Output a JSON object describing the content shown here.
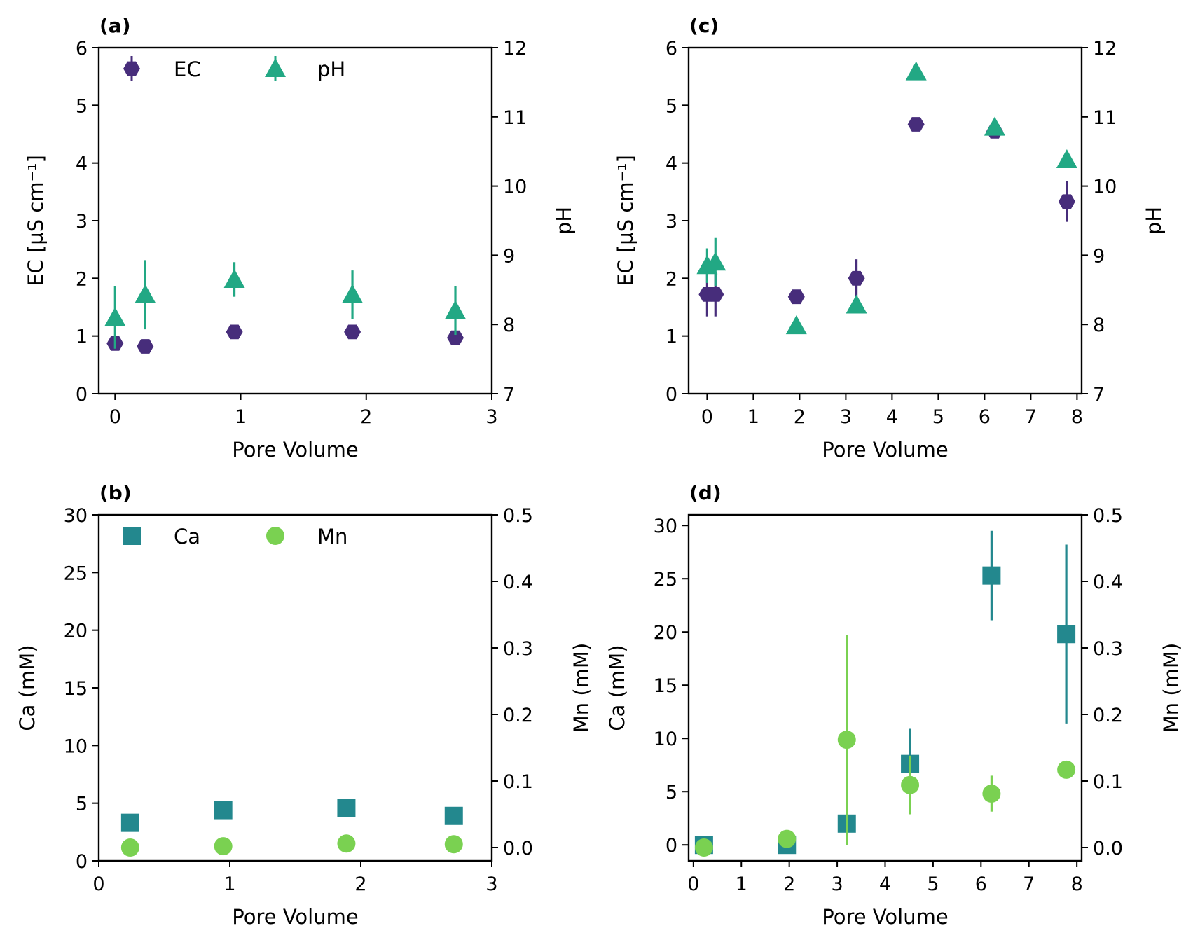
{
  "chart_data": [
    {
      "panel": "(a)",
      "type": "scatter",
      "xlabel": "Pore Volume",
      "ylabel": "EC [µS cm⁻¹]",
      "ylabel_right": "pH",
      "xlim": [
        -0.13,
        3.0
      ],
      "ylim": [
        0,
        6
      ],
      "ylim_right": [
        7,
        12
      ],
      "xticks": [
        0,
        1,
        2,
        3
      ],
      "yticks": [
        0,
        1,
        2,
        3,
        4,
        5,
        6
      ],
      "yticks_right": [
        7,
        8,
        9,
        10,
        11,
        12
      ],
      "legend": {
        "position": "top",
        "entries": [
          "EC",
          "pH"
        ]
      },
      "series": [
        {
          "name": "EC",
          "axis": "left",
          "marker": "hexagon",
          "color": "#472d7b",
          "x": [
            0.0,
            0.24,
            0.95,
            1.89,
            2.71
          ],
          "y": [
            0.87,
            0.82,
            1.07,
            1.07,
            0.97
          ],
          "err": [
            0.05,
            0.05,
            0.04,
            0.04,
            0.04
          ]
        },
        {
          "name": "pH",
          "axis": "right",
          "marker": "triangle",
          "color": "#22a884",
          "x": [
            0.0,
            0.24,
            0.95,
            1.89,
            2.71
          ],
          "y": [
            8.1,
            8.43,
            8.65,
            8.43,
            8.2
          ],
          "err": [
            0.45,
            0.5,
            0.25,
            0.35,
            0.35
          ]
        }
      ]
    },
    {
      "panel": "(b)",
      "type": "scatter",
      "xlabel": "Pore Volume",
      "ylabel": "Ca (mM)",
      "ylabel_right": "Mn (mM)",
      "xlim": [
        0,
        3
      ],
      "ylim": [
        0,
        30
      ],
      "ylim_right": [
        -0.02,
        0.5
      ],
      "xticks": [
        0,
        1,
        2,
        3
      ],
      "yticks": [
        0,
        5,
        10,
        15,
        20,
        25,
        30
      ],
      "yticks_right": [
        0.0,
        0.1,
        0.2,
        0.3,
        0.4,
        0.5
      ],
      "yticks_right_labels": [
        "0.0",
        "0.1",
        "0.2",
        "0.3",
        "0.4",
        "0.5"
      ],
      "legend": {
        "position": "top",
        "entries": [
          "Ca",
          "Mn"
        ]
      },
      "series": [
        {
          "name": "Ca",
          "axis": "left",
          "marker": "square",
          "color": "#23888e",
          "x": [
            0.24,
            0.95,
            1.89,
            2.71
          ],
          "y": [
            3.3,
            4.4,
            4.6,
            3.9
          ],
          "err": [
            0.1,
            0.1,
            0.1,
            0.1
          ]
        },
        {
          "name": "Mn",
          "axis": "right",
          "marker": "circle",
          "color": "#7ad151",
          "x": [
            0.24,
            0.95,
            1.89,
            2.71
          ],
          "y": [
            0.0,
            0.002,
            0.006,
            0.005
          ],
          "err": [
            0.0,
            0.0,
            0.0,
            0.0
          ]
        }
      ]
    },
    {
      "panel": "(c)",
      "type": "scatter",
      "xlabel": "Pore Volume",
      "ylabel": "EC [µS cm⁻¹]",
      "ylabel_right": "pH",
      "xlim": [
        -0.4,
        8.1
      ],
      "ylim": [
        0,
        6
      ],
      "ylim_right": [
        7,
        12
      ],
      "xticks": [
        0,
        1,
        2,
        3,
        4,
        5,
        6,
        7,
        8
      ],
      "yticks": [
        0,
        1,
        2,
        3,
        4,
        5,
        6
      ],
      "yticks_right": [
        7,
        8,
        9,
        10,
        11,
        12
      ],
      "series": [
        {
          "name": "EC",
          "axis": "left",
          "marker": "hexagon",
          "color": "#472d7b",
          "x": [
            0.0,
            0.18,
            1.93,
            3.23,
            4.52,
            6.22,
            7.78
          ],
          "y": [
            1.72,
            1.72,
            1.68,
            2.0,
            4.67,
            4.55,
            3.33
          ],
          "err": [
            0.38,
            0.38,
            0.05,
            0.33,
            0.05,
            0.05,
            0.35
          ]
        },
        {
          "name": "pH",
          "axis": "right",
          "marker": "triangle",
          "color": "#22a884",
          "x": [
            0.0,
            0.18,
            1.93,
            3.23,
            4.52,
            6.22,
            7.78
          ],
          "y": [
            8.85,
            8.9,
            7.98,
            8.28,
            11.65,
            10.85,
            10.38
          ],
          "err": [
            0.25,
            0.35,
            0.0,
            0.0,
            0.0,
            0.0,
            0.0
          ]
        }
      ]
    },
    {
      "panel": "(d)",
      "type": "scatter",
      "xlabel": "Pore Volume",
      "ylabel": "Ca (mM)",
      "ylabel_right": "Mn (mM)",
      "xlim": [
        -0.1,
        8.1
      ],
      "ylim": [
        -1.5,
        31
      ],
      "ylim_right": [
        -0.02,
        0.5
      ],
      "xticks": [
        0,
        1,
        2,
        3,
        4,
        5,
        6,
        7,
        8
      ],
      "yticks": [
        0,
        5,
        10,
        15,
        20,
        25,
        30
      ],
      "yticks_right": [
        0.0,
        0.1,
        0.2,
        0.3,
        0.4,
        0.5
      ],
      "yticks_right_labels": [
        "0.0",
        "0.1",
        "0.2",
        "0.3",
        "0.4",
        "0.5"
      ],
      "series": [
        {
          "name": "Ca",
          "axis": "left",
          "marker": "square",
          "color": "#23888e",
          "x": [
            0.22,
            1.95,
            3.2,
            4.52,
            6.22,
            7.78
          ],
          "y": [
            0.0,
            0.0,
            2.0,
            7.6,
            25.3,
            19.8
          ],
          "err": [
            0.0,
            0.0,
            0.0,
            3.3,
            4.2,
            8.4
          ]
        },
        {
          "name": "Mn",
          "axis": "right",
          "marker": "circle",
          "color": "#7ad151",
          "x": [
            0.22,
            1.95,
            3.2,
            4.52,
            6.22,
            7.78
          ],
          "y": [
            0.0,
            0.013,
            0.162,
            0.094,
            0.081,
            0.117
          ],
          "err": [
            0.0,
            0.0,
            0.158,
            0.044,
            0.027,
            0.0
          ]
        }
      ]
    }
  ]
}
